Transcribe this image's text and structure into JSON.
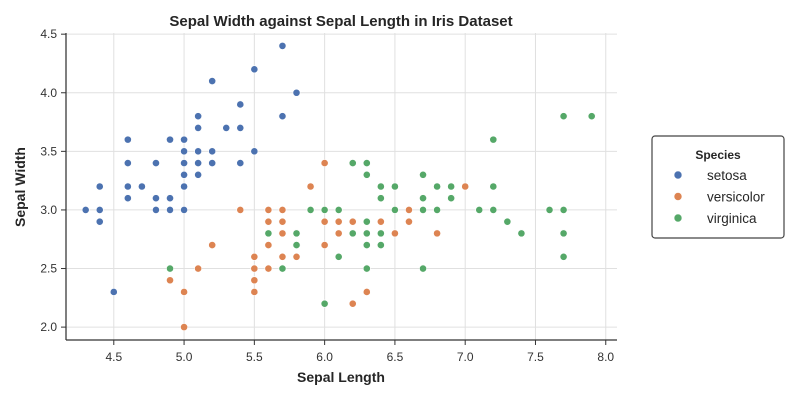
{
  "chart_data": {
    "type": "scatter",
    "title": "Sepal Width against Sepal Length in Iris Dataset",
    "xlabel": "Sepal Length",
    "ylabel": "Sepal Width",
    "xlim": [
      4.16,
      8.08
    ],
    "ylim": [
      1.89,
      4.51
    ],
    "xticks": [
      "4.5",
      "5.0",
      "5.5",
      "6.0",
      "6.5",
      "7.0",
      "7.5",
      "8.0"
    ],
    "yticks": [
      "2.0",
      "2.5",
      "3.0",
      "3.5",
      "4.0",
      "4.5"
    ],
    "grid": true,
    "legend": {
      "title": "Species",
      "placement": "right"
    },
    "series": [
      {
        "name": "setosa",
        "color": "#4c72b0",
        "points": [
          [
            5.1,
            3.5
          ],
          [
            4.9,
            3.0
          ],
          [
            4.7,
            3.2
          ],
          [
            4.6,
            3.1
          ],
          [
            5.0,
            3.6
          ],
          [
            5.4,
            3.9
          ],
          [
            4.6,
            3.4
          ],
          [
            5.0,
            3.4
          ],
          [
            4.4,
            2.9
          ],
          [
            4.9,
            3.1
          ],
          [
            5.4,
            3.7
          ],
          [
            4.8,
            3.4
          ],
          [
            4.8,
            3.0
          ],
          [
            4.3,
            3.0
          ],
          [
            5.8,
            4.0
          ],
          [
            5.7,
            4.4
          ],
          [
            5.4,
            3.9
          ],
          [
            5.1,
            3.5
          ],
          [
            5.7,
            3.8
          ],
          [
            5.1,
            3.8
          ],
          [
            5.4,
            3.4
          ],
          [
            5.1,
            3.7
          ],
          [
            4.6,
            3.6
          ],
          [
            5.1,
            3.3
          ],
          [
            4.8,
            3.4
          ],
          [
            5.0,
            3.0
          ],
          [
            5.0,
            3.4
          ],
          [
            5.2,
            3.5
          ],
          [
            5.2,
            3.4
          ],
          [
            4.7,
            3.2
          ],
          [
            4.8,
            3.1
          ],
          [
            5.4,
            3.4
          ],
          [
            5.2,
            4.1
          ],
          [
            5.5,
            4.2
          ],
          [
            4.9,
            3.1
          ],
          [
            5.0,
            3.2
          ],
          [
            5.5,
            3.5
          ],
          [
            4.9,
            3.6
          ],
          [
            4.4,
            3.0
          ],
          [
            5.1,
            3.4
          ],
          [
            5.0,
            3.5
          ],
          [
            4.5,
            2.3
          ],
          [
            4.4,
            3.2
          ],
          [
            5.0,
            3.5
          ],
          [
            5.1,
            3.8
          ],
          [
            4.8,
            3.0
          ],
          [
            5.1,
            3.8
          ],
          [
            4.6,
            3.2
          ],
          [
            5.3,
            3.7
          ],
          [
            5.0,
            3.3
          ]
        ]
      },
      {
        "name": "versicolor",
        "color": "#dd8452",
        "points": [
          [
            7.0,
            3.2
          ],
          [
            6.4,
            3.2
          ],
          [
            6.9,
            3.1
          ],
          [
            5.5,
            2.3
          ],
          [
            6.5,
            2.8
          ],
          [
            5.7,
            2.8
          ],
          [
            6.3,
            3.3
          ],
          [
            4.9,
            2.4
          ],
          [
            6.6,
            2.9
          ],
          [
            5.2,
            2.7
          ],
          [
            5.0,
            2.0
          ],
          [
            5.9,
            3.0
          ],
          [
            6.0,
            2.2
          ],
          [
            6.1,
            2.9
          ],
          [
            5.6,
            2.9
          ],
          [
            6.7,
            3.1
          ],
          [
            5.6,
            3.0
          ],
          [
            5.8,
            2.7
          ],
          [
            6.2,
            2.2
          ],
          [
            5.6,
            2.5
          ],
          [
            5.9,
            3.2
          ],
          [
            6.1,
            2.8
          ],
          [
            6.3,
            2.5
          ],
          [
            6.1,
            2.8
          ],
          [
            6.4,
            2.9
          ],
          [
            6.6,
            3.0
          ],
          [
            6.8,
            2.8
          ],
          [
            6.7,
            3.0
          ],
          [
            6.0,
            2.9
          ],
          [
            5.7,
            2.6
          ],
          [
            5.5,
            2.4
          ],
          [
            5.5,
            2.4
          ],
          [
            5.8,
            2.7
          ],
          [
            6.0,
            2.7
          ],
          [
            5.4,
            3.0
          ],
          [
            6.0,
            3.4
          ],
          [
            6.7,
            3.1
          ],
          [
            6.3,
            2.3
          ],
          [
            5.6,
            3.0
          ],
          [
            5.5,
            2.5
          ],
          [
            5.5,
            2.6
          ],
          [
            6.1,
            3.0
          ],
          [
            5.8,
            2.6
          ],
          [
            5.0,
            2.3
          ],
          [
            5.6,
            2.7
          ],
          [
            5.7,
            3.0
          ],
          [
            5.7,
            2.9
          ],
          [
            6.2,
            2.9
          ],
          [
            5.1,
            2.5
          ],
          [
            5.7,
            2.8
          ]
        ]
      },
      {
        "name": "virginica",
        "color": "#55a868",
        "points": [
          [
            6.3,
            3.3
          ],
          [
            5.8,
            2.7
          ],
          [
            7.1,
            3.0
          ],
          [
            6.3,
            2.9
          ],
          [
            6.5,
            3.0
          ],
          [
            7.6,
            3.0
          ],
          [
            4.9,
            2.5
          ],
          [
            7.3,
            2.9
          ],
          [
            6.7,
            2.5
          ],
          [
            7.2,
            3.6
          ],
          [
            6.5,
            3.2
          ],
          [
            6.4,
            2.7
          ],
          [
            6.8,
            3.0
          ],
          [
            5.7,
            2.5
          ],
          [
            5.8,
            2.8
          ],
          [
            6.4,
            3.2
          ],
          [
            6.5,
            3.0
          ],
          [
            7.7,
            3.8
          ],
          [
            7.7,
            2.6
          ],
          [
            6.0,
            2.2
          ],
          [
            6.9,
            3.2
          ],
          [
            5.6,
            2.8
          ],
          [
            7.7,
            2.8
          ],
          [
            6.3,
            2.7
          ],
          [
            6.7,
            3.3
          ],
          [
            7.2,
            3.2
          ],
          [
            6.2,
            2.8
          ],
          [
            6.1,
            3.0
          ],
          [
            6.4,
            2.8
          ],
          [
            7.2,
            3.0
          ],
          [
            7.4,
            2.8
          ],
          [
            7.9,
            3.8
          ],
          [
            6.4,
            2.8
          ],
          [
            6.3,
            2.8
          ],
          [
            6.1,
            2.6
          ],
          [
            7.7,
            3.0
          ],
          [
            6.3,
            3.4
          ],
          [
            6.4,
            3.1
          ],
          [
            6.0,
            3.0
          ],
          [
            6.9,
            3.1
          ],
          [
            6.7,
            3.1
          ],
          [
            6.9,
            3.1
          ],
          [
            5.8,
            2.7
          ],
          [
            6.8,
            3.2
          ],
          [
            6.7,
            3.3
          ],
          [
            6.7,
            3.0
          ],
          [
            6.3,
            2.5
          ],
          [
            6.5,
            3.0
          ],
          [
            6.2,
            3.4
          ],
          [
            5.9,
            3.0
          ]
        ]
      }
    ]
  }
}
